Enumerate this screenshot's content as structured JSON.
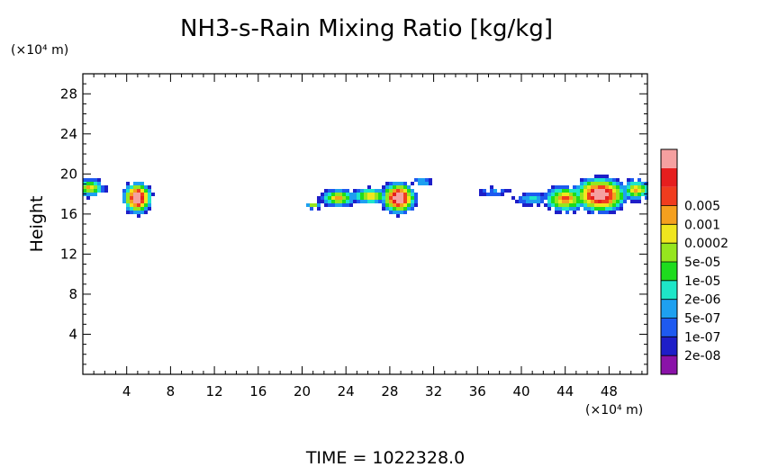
{
  "chart_data": {
    "type": "heatmap",
    "title": "NH3-s-Rain Mixing Ratio [kg/kg]",
    "xlabel": "",
    "x_unit": "(×10⁴ m)",
    "ylabel": "Height",
    "y_unit": "(×10⁴ m)",
    "xlim": [
      0,
      51.5
    ],
    "ylim": [
      0,
      30
    ],
    "x_ticks": [
      4,
      8,
      12,
      16,
      20,
      24,
      28,
      32,
      36,
      40,
      44,
      48
    ],
    "y_ticks": [
      4,
      8,
      12,
      16,
      20,
      24,
      28
    ],
    "x_tick_labels": [
      "4",
      "8",
      "12",
      "16",
      "20",
      "24",
      "28",
      "32",
      "36",
      "40",
      "44",
      "48"
    ],
    "y_tick_labels": [
      "4",
      "8",
      "12",
      "16",
      "20",
      "24",
      "28"
    ],
    "colorbar": {
      "levels": [
        "2e-08",
        "1e-07",
        "5e-07",
        "2e-06",
        "1e-05",
        "5e-05",
        "0.0002",
        "0.001",
        "0.005"
      ],
      "colors": [
        "#8a12a8",
        "#1e1ec8",
        "#1e5af0",
        "#1ea0f0",
        "#1ee6c8",
        "#1edc1e",
        "#96e61e",
        "#f0e61e",
        "#f5a01e",
        "#f03c1e",
        "#e61e1e",
        "#f5a0a0"
      ]
    },
    "blobs": [
      {
        "name": "left-edge-cloud",
        "cx": 0.6,
        "cy": 18.6,
        "rx": 1.6,
        "ry": 1.0,
        "peak": 6
      },
      {
        "name": "cloud-x5",
        "cx": 5.0,
        "cy": 17.6,
        "rx": 1.5,
        "ry": 1.8,
        "peak": 10
      },
      {
        "name": "cloud-x21",
        "cx": 21.0,
        "cy": 16.9,
        "rx": 0.8,
        "ry": 0.5,
        "peak": 5
      },
      {
        "name": "cloud-x23",
        "cx": 23.3,
        "cy": 17.6,
        "rx": 1.8,
        "ry": 1.0,
        "peak": 6
      },
      {
        "name": "cloud-x26",
        "cx": 26.2,
        "cy": 17.8,
        "rx": 2.0,
        "ry": 0.9,
        "peak": 6
      },
      {
        "name": "cloud-x29",
        "cx": 28.8,
        "cy": 17.6,
        "rx": 1.8,
        "ry": 1.8,
        "peak": 10
      },
      {
        "name": "cloud-x31",
        "cx": 31.0,
        "cy": 19.2,
        "rx": 1.0,
        "ry": 0.5,
        "peak": 3
      },
      {
        "name": "cloud-x37",
        "cx": 37.5,
        "cy": 18.2,
        "rx": 1.6,
        "ry": 0.5,
        "peak": 2
      },
      {
        "name": "cloud-x41",
        "cx": 41.0,
        "cy": 17.5,
        "rx": 1.8,
        "ry": 0.7,
        "peak": 3
      },
      {
        "name": "cloud-x44",
        "cx": 44.0,
        "cy": 17.5,
        "rx": 2.2,
        "ry": 1.5,
        "peak": 7
      },
      {
        "name": "cloud-x47",
        "cx": 47.2,
        "cy": 17.9,
        "rx": 2.8,
        "ry": 2.0,
        "peak": 10
      },
      {
        "name": "cloud-x50",
        "cx": 50.5,
        "cy": 18.4,
        "rx": 1.6,
        "ry": 1.2,
        "peak": 6
      }
    ]
  },
  "footer": {
    "time_label": "TIME  =  1022328.0"
  }
}
